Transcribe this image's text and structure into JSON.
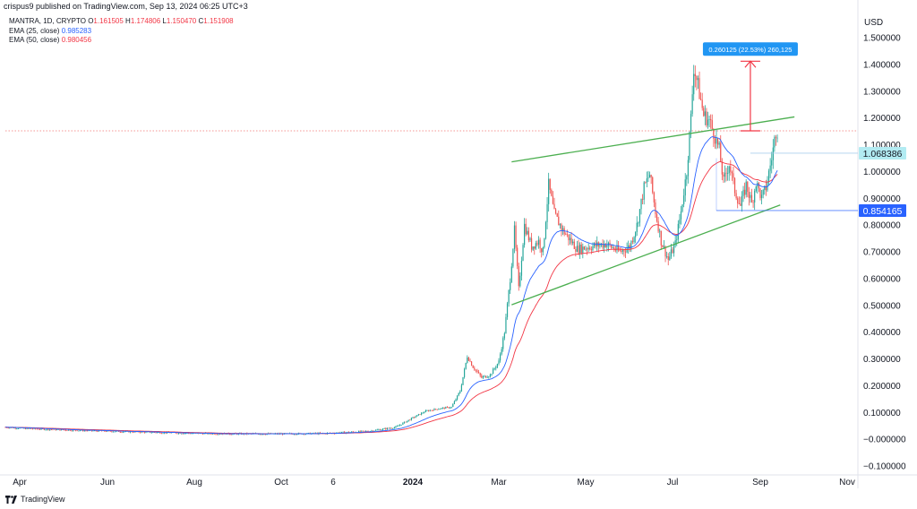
{
  "header": {
    "published": "crispus9 published on TradingView.com, Sep 13, 2024 06:25 UTC+3"
  },
  "legend": {
    "symbol": "MANTRA, 1D, CRYPTO",
    "ohlc": {
      "o_label": "O",
      "o": "1.161505",
      "h_label": "H",
      "h": "1.174806",
      "l_label": "L",
      "l": "1.150470",
      "c_label": "C",
      "c": "1.151908"
    },
    "ema25": {
      "label": "EMA (25, close)",
      "value": "0.985283"
    },
    "ema50": {
      "label": "EMA (50, close)",
      "value": "0.980456"
    }
  },
  "footer": {
    "brand": "TradingView"
  },
  "colors": {
    "up": "#26a69a",
    "down": "#ef5350",
    "ema25": "#2962ff",
    "ema50": "#f23645",
    "channel": "#4caf50",
    "measure": "#f23645",
    "label_blue": "#2196f3"
  },
  "chart_data": {
    "type": "candlestick",
    "currency": "USD",
    "ylim": [
      -0.12,
      1.55
    ],
    "y_ticks": [
      "1.500000",
      "1.400000",
      "1.300000",
      "1.200000",
      "1.100000",
      "1.000000",
      "0.900000",
      "0.800000",
      "0.700000",
      "0.600000",
      "0.500000",
      "0.400000",
      "0.300000",
      "0.200000",
      "0.100000",
      "−0.000000",
      "−0.100000"
    ],
    "y_tick_values": [
      1.5,
      1.4,
      1.3,
      1.2,
      1.1,
      1.0,
      0.9,
      0.8,
      0.7,
      0.6,
      0.5,
      0.4,
      0.3,
      0.2,
      0.1,
      0.0,
      -0.1
    ],
    "x_ticks": [
      "Apr",
      "Jun",
      "Aug",
      "Oct",
      "6",
      "2024",
      "Mar",
      "May",
      "Jul",
      "Sep",
      "Nov"
    ],
    "x_tick_dates": [
      "2023-04-01",
      "2023-06-01",
      "2023-08-01",
      "2023-10-01",
      "2023-11-06",
      "2024-01-01",
      "2024-03-01",
      "2024-05-01",
      "2024-07-01",
      "2024-09-01",
      "2024-11-01"
    ],
    "date_range": [
      "2023-03-22",
      "2024-09-13"
    ],
    "price_labels": [
      {
        "value": 1.068386,
        "text": "1.068386"
      },
      {
        "value": 0.854165,
        "text": "0.854165"
      }
    ],
    "horizontal_line": {
      "value": 1.152,
      "style": "dotted"
    },
    "measure_label": "0.260125 (22.53%) 260,125",
    "measure": {
      "date": "2024-08-25",
      "from": 1.152,
      "to": 1.412
    },
    "channel_upper": [
      {
        "date": "2024-03-10",
        "value": 1.036
      },
      {
        "date": "2024-09-25",
        "value": 1.204
      }
    ],
    "channel_lower": [
      {
        "date": "2024-03-10",
        "value": 0.502
      },
      {
        "date": "2024-09-15",
        "value": 0.875
      }
    ],
    "price_path": [
      [
        "2023-03-22",
        0.045
      ],
      [
        "2023-04-05",
        0.04
      ],
      [
        "2023-05-01",
        0.035
      ],
      [
        "2023-06-01",
        0.03
      ],
      [
        "2023-07-01",
        0.026
      ],
      [
        "2023-08-01",
        0.022
      ],
      [
        "2023-09-01",
        0.02
      ],
      [
        "2023-10-01",
        0.02
      ],
      [
        "2023-11-01",
        0.022
      ],
      [
        "2023-12-01",
        0.03
      ],
      [
        "2023-12-20",
        0.045
      ],
      [
        "2024-01-01",
        0.08
      ],
      [
        "2024-01-10",
        0.105
      ],
      [
        "2024-01-20",
        0.115
      ],
      [
        "2024-01-28",
        0.12
      ],
      [
        "2024-02-03",
        0.18
      ],
      [
        "2024-02-08",
        0.31
      ],
      [
        "2024-02-12",
        0.27
      ],
      [
        "2024-02-18",
        0.23
      ],
      [
        "2024-02-24",
        0.24
      ],
      [
        "2024-03-01",
        0.29
      ],
      [
        "2024-03-05",
        0.4
      ],
      [
        "2024-03-09",
        0.6
      ],
      [
        "2024-03-12",
        0.78
      ],
      [
        "2024-03-15",
        0.56
      ],
      [
        "2024-03-19",
        0.8
      ],
      [
        "2024-03-24",
        0.72
      ],
      [
        "2024-03-29",
        0.74
      ],
      [
        "2024-04-01",
        0.7
      ],
      [
        "2024-04-05",
        0.95
      ],
      [
        "2024-04-09",
        0.84
      ],
      [
        "2024-04-15",
        0.78
      ],
      [
        "2024-04-25",
        0.71
      ],
      [
        "2024-05-05",
        0.72
      ],
      [
        "2024-05-15",
        0.73
      ],
      [
        "2024-05-25",
        0.7
      ],
      [
        "2024-06-01",
        0.72
      ],
      [
        "2024-06-06",
        0.8
      ],
      [
        "2024-06-11",
        0.94
      ],
      [
        "2024-06-15",
        0.99
      ],
      [
        "2024-06-19",
        0.85
      ],
      [
        "2024-06-23",
        0.74
      ],
      [
        "2024-06-28",
        0.67
      ],
      [
        "2024-07-03",
        0.73
      ],
      [
        "2024-07-07",
        0.85
      ],
      [
        "2024-07-11",
        1.0
      ],
      [
        "2024-07-14",
        1.2
      ],
      [
        "2024-07-16",
        1.39
      ],
      [
        "2024-07-19",
        1.32
      ],
      [
        "2024-07-23",
        1.21
      ],
      [
        "2024-07-27",
        1.19
      ],
      [
        "2024-07-31",
        1.13
      ],
      [
        "2024-08-03",
        1.08
      ],
      [
        "2024-08-06",
        0.96
      ],
      [
        "2024-08-10",
        1.03
      ],
      [
        "2024-08-14",
        0.93
      ],
      [
        "2024-08-18",
        0.87
      ],
      [
        "2024-08-22",
        0.95
      ],
      [
        "2024-08-26",
        0.88
      ],
      [
        "2024-08-29",
        0.96
      ],
      [
        "2024-09-02",
        0.9
      ],
      [
        "2024-09-05",
        0.94
      ],
      [
        "2024-09-09",
        1.05
      ],
      [
        "2024-09-12",
        1.152
      ]
    ]
  }
}
